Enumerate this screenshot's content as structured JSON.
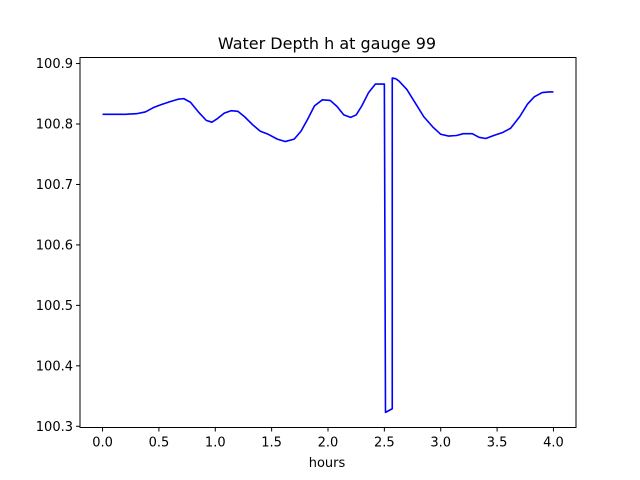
{
  "chart_data": {
    "type": "line",
    "title": "Water Depth h at gauge 99",
    "xlabel": "hours",
    "ylabel": "",
    "xlim": [
      -0.2,
      4.2
    ],
    "ylim": [
      100.298,
      100.91
    ],
    "xticks": [
      0.0,
      0.5,
      1.0,
      1.5,
      2.0,
      2.5,
      3.0,
      3.5,
      4.0
    ],
    "xtick_labels": [
      "0.0",
      "0.5",
      "1.0",
      "1.5",
      "2.0",
      "2.5",
      "3.0",
      "3.5",
      "4.0"
    ],
    "yticks": [
      100.3,
      100.4,
      100.5,
      100.6,
      100.7,
      100.8,
      100.9
    ],
    "ytick_labels": [
      "100.3",
      "100.4",
      "100.5",
      "100.6",
      "100.7",
      "100.8",
      "100.9"
    ],
    "grid": false,
    "series": [
      {
        "color": "#0000ff",
        "x": [
          0.0,
          0.1,
          0.2,
          0.3,
          0.38,
          0.45,
          0.52,
          0.6,
          0.67,
          0.72,
          0.78,
          0.85,
          0.92,
          0.97,
          1.02,
          1.08,
          1.14,
          1.2,
          1.26,
          1.33,
          1.4,
          1.47,
          1.55,
          1.62,
          1.7,
          1.76,
          1.82,
          1.88,
          1.95,
          2.02,
          2.08,
          2.14,
          2.2,
          2.25,
          2.3,
          2.36,
          2.42,
          2.47,
          2.5,
          2.51,
          2.51,
          2.57,
          2.57,
          2.57,
          2.6,
          2.63,
          2.7,
          2.78,
          2.85,
          2.93,
          3.0,
          3.07,
          3.14,
          3.2,
          3.28,
          3.34,
          3.4,
          3.47,
          3.55,
          3.62,
          3.7,
          3.77,
          3.83,
          3.9,
          3.96,
          4.0
        ],
        "y": [
          100.816,
          100.816,
          100.816,
          100.817,
          100.82,
          100.827,
          100.832,
          100.837,
          100.841,
          100.842,
          100.836,
          100.82,
          100.806,
          100.803,
          100.809,
          100.818,
          100.822,
          100.821,
          100.812,
          100.799,
          100.788,
          100.783,
          100.775,
          100.771,
          100.775,
          100.788,
          100.808,
          100.83,
          100.84,
          100.839,
          100.829,
          100.815,
          100.811,
          100.815,
          100.83,
          100.852,
          100.866,
          100.866,
          100.866,
          100.323,
          100.323,
          100.329,
          100.874,
          100.876,
          100.875,
          100.871,
          100.857,
          100.833,
          100.812,
          100.795,
          100.783,
          100.78,
          100.781,
          100.784,
          100.784,
          100.778,
          100.776,
          100.781,
          100.786,
          100.793,
          100.812,
          100.833,
          100.845,
          100.852,
          100.853,
          100.853
        ]
      }
    ]
  }
}
